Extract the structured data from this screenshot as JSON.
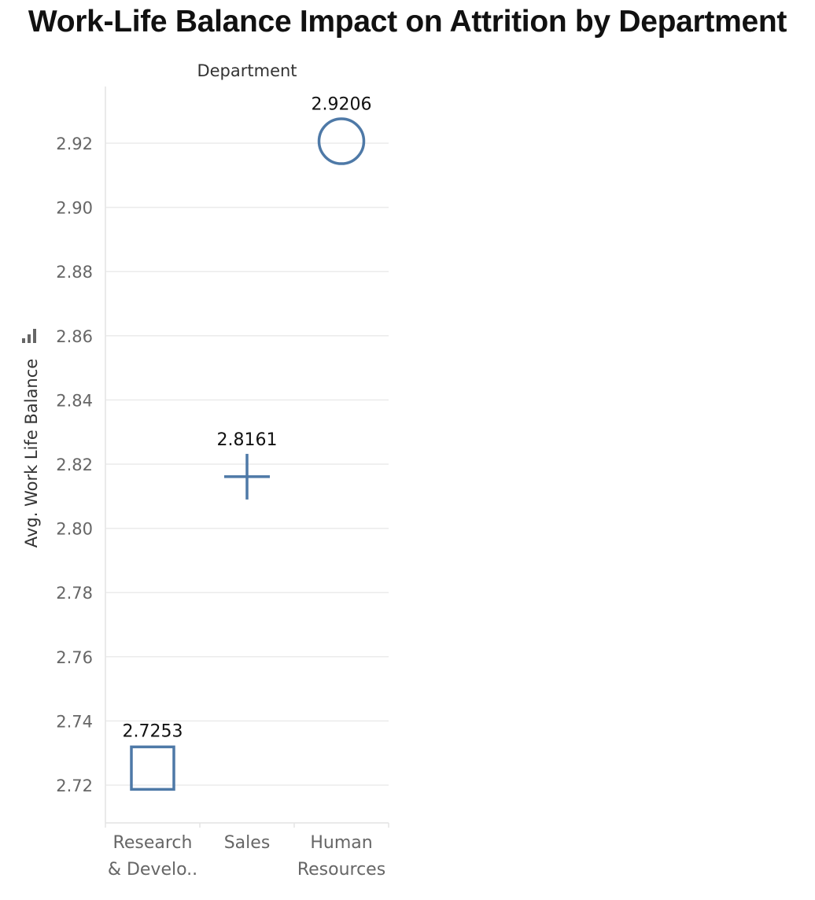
{
  "chart_data": {
    "type": "scatter",
    "title": "Work-Life Balance Impact on Attrition by Department",
    "header": "Department",
    "ylabel": "Avg. Work Life Balance",
    "categories": [
      {
        "lines": [
          "Research",
          "& Develo.."
        ],
        "value": 2.7253,
        "label": "2.7253",
        "shape": "square"
      },
      {
        "lines": [
          "Sales"
        ],
        "value": 2.8161,
        "label": "2.8161",
        "shape": "plus"
      },
      {
        "lines": [
          "Human",
          "Resources"
        ],
        "value": 2.9206,
        "label": "2.9206",
        "shape": "circle"
      }
    ],
    "yticks": [
      "2.72",
      "2.74",
      "2.76",
      "2.78",
      "2.80",
      "2.82",
      "2.84",
      "2.86",
      "2.88",
      "2.90",
      "2.92"
    ],
    "ylim": [
      2.709,
      2.936
    ],
    "grid": true,
    "mark_color": "#4e79a7",
    "grid_color": "#ebebeb",
    "axis_color": "#e4e4e4"
  }
}
